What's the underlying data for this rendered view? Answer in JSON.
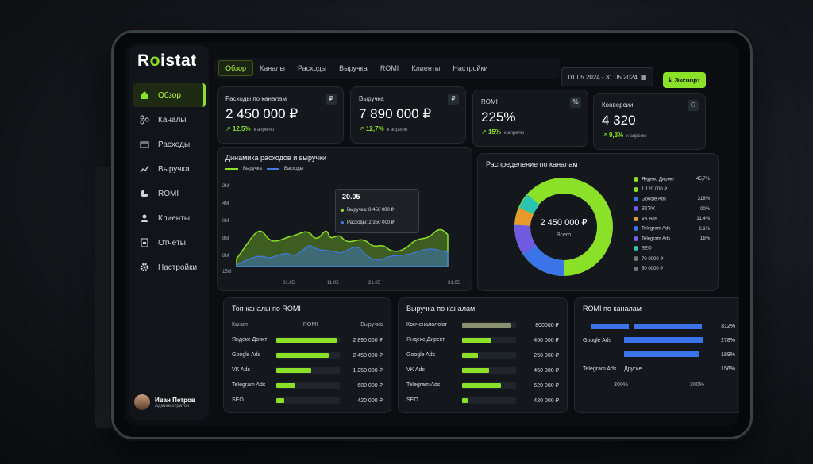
{
  "app": {
    "logo": "Roistat"
  },
  "sidebar": {
    "items": [
      {
        "label": "Обзор",
        "icon": "home-icon",
        "active": true
      },
      {
        "label": "Каналы",
        "icon": "channels-icon"
      },
      {
        "label": "Расходы",
        "icon": "expenses-icon"
      },
      {
        "label": "Выручка",
        "icon": "revenue-icon"
      },
      {
        "label": "ROMI",
        "icon": "pie-icon"
      },
      {
        "label": "Клиенты",
        "icon": "user-icon"
      },
      {
        "label": "Отчёты",
        "icon": "reports-icon"
      },
      {
        "label": "Настройки",
        "icon": "gear-icon"
      }
    ],
    "user": {
      "name": "Иван Петров",
      "role": "Администратор"
    }
  },
  "topnav": {
    "tabs": [
      "Обзор",
      "Каналы",
      "Расходы",
      "Выручка",
      "ROMI",
      "Клиенты",
      "Настройки"
    ],
    "date_range": "01.05.2024 - 31.05.2024",
    "export_label": "Экспорт"
  },
  "kpis": [
    {
      "label": "Расходы по каналам",
      "value": "2 450 000 ₽",
      "delta": "12,5%",
      "note": "к апрелю",
      "icon": "₽"
    },
    {
      "label": "Выручка",
      "value": "7 890 000 ₽",
      "delta": "12,7%",
      "note": "к апрелю",
      "icon": "₽"
    },
    {
      "label": "ROMI",
      "value": "225%",
      "delta": "15%",
      "note": "к апрелю",
      "icon": "%"
    },
    {
      "label": "Конверсии",
      "value": "4 320",
      "delta": "9,3%",
      "note": "к апрелю",
      "icon": "person"
    }
  ],
  "dynamics": {
    "title": "Динамика расходов и выручки",
    "legend": [
      "Выручка",
      "Васходы"
    ],
    "tooltip": {
      "date": "20.05",
      "row1": "Выручка: 8 450 000 ₽",
      "row2": "Расходы: 2 350 000 ₽"
    },
    "colors": {
      "revenue": "#8be028",
      "expenses": "#3f7ae0"
    }
  },
  "distribution": {
    "title": "Распределение по каналам",
    "center_value": "2 450 000 ₽",
    "center_label": "Всего",
    "legend": [
      {
        "name": "Яндекс Директ",
        "value": "45,7%",
        "color": "#8be028"
      },
      {
        "name": "1 120 000 ₽",
        "value": "",
        "color": "#8be028"
      },
      {
        "name": "Google Ads",
        "value": "318%",
        "color": "#3b74e8"
      },
      {
        "name": "В2ЭЖ",
        "value": "00%",
        "color": "#6f5ae0"
      },
      {
        "name": "VK Ads",
        "value": "11.4%",
        "color": "#e89a2c"
      },
      {
        "name": "Telegram Ads",
        "value": "6.1%",
        "color": "#3b74e8"
      },
      {
        "name": "Telegram Ads",
        "value": "16%",
        "color": "#7d62e8"
      },
      {
        "name": "SEO",
        "value": "",
        "color": "#2bc4b0"
      },
      {
        "name": "70 0000 ₽",
        "value": "",
        "color": "#777"
      },
      {
        "name": "50 0000 ₽",
        "value": "",
        "color": "#777"
      }
    ]
  },
  "top_romi": {
    "title": "Топ-каналы по ROMI",
    "headers": [
      "Канал",
      "ROMI",
      "Выручка"
    ],
    "rows": [
      {
        "name": "Яндекс Доикт",
        "value": "2 890 000 ₽",
        "pct": 0.95
      },
      {
        "name": "Google Ads",
        "value": "2 450 000 ₽",
        "pct": 0.82
      },
      {
        "name": "VK Ads",
        "value": "1 250 000 ₽",
        "pct": 0.55
      },
      {
        "name": "Telegram Ads",
        "value": "680 000 ₽",
        "pct": 0.3
      },
      {
        "name": "SEO",
        "value": "420 000 ₽",
        "pct": 0.12
      }
    ]
  },
  "revenue_channels": {
    "title": "Выручка по каналам",
    "rows": [
      {
        "name": "Конченалолоlor",
        "value": "800000 ₽",
        "pct": 0.9,
        "color": "#8a8f6f"
      },
      {
        "name": "Яндекс Директ",
        "value": "450 000 ₽",
        "pct": 0.55
      },
      {
        "name": "Google Ads",
        "value": "250 000 ₽",
        "pct": 0.3
      },
      {
        "name": "VK Ads",
        "value": "450 000 ₽",
        "pct": 0.5
      },
      {
        "name": "Telegram Ads",
        "value": "620 000 ₽",
        "pct": 0.72
      },
      {
        "name": "SEO",
        "value": "420 000 ₽",
        "pct": 0.1
      }
    ]
  },
  "romi_channels": {
    "title": "ROMI по каналам",
    "rows": [
      {
        "name": "",
        "value": "312%",
        "pct": 0.9
      },
      {
        "name": "Google Ads",
        "value": "278%",
        "pct": 1.0
      },
      {
        "name": "",
        "value": "189%",
        "pct": 0.88
      },
      {
        "name": "Telegram Ads",
        "name2": "Другие",
        "value": "156%",
        "pct": 0.0
      }
    ],
    "axis": [
      "300%",
      "300%"
    ]
  }
}
